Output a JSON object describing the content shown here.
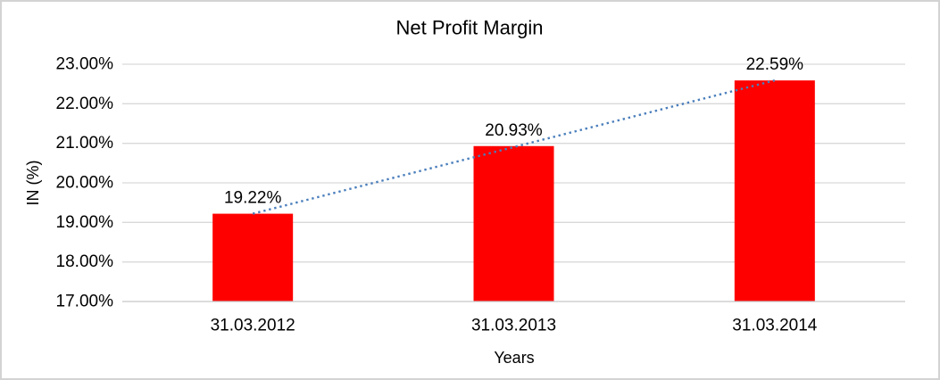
{
  "chart_data": {
    "type": "bar",
    "title": "Net Profit Margin",
    "xlabel": "Years",
    "ylabel": "IN (%)",
    "categories": [
      "31.03.2012",
      "31.03.2013",
      "31.03.2014"
    ],
    "values": [
      19.22,
      20.93,
      22.59
    ],
    "data_labels": [
      "19.22%",
      "20.93%",
      "22.59%"
    ],
    "ylim": [
      17,
      23
    ],
    "yticks": [
      {
        "value": 23,
        "label": "23.00%"
      },
      {
        "value": 22,
        "label": "22.00%"
      },
      {
        "value": 21,
        "label": "21.00%"
      },
      {
        "value": 20,
        "label": "20.00%"
      },
      {
        "value": 19,
        "label": "19.00%"
      },
      {
        "value": 18,
        "label": "18.00%"
      },
      {
        "value": 17,
        "label": "17.00%"
      }
    ],
    "grid": true,
    "legend": "none",
    "trendline": {
      "type": "linear",
      "style": "dotted"
    },
    "colors": {
      "bar": "#ff0000",
      "gridline": "#d9d9d9",
      "axis_line": "#c6c6c6",
      "trendline": "#4a7ebb",
      "text": "#000000",
      "frame_border": "#d3d3d3",
      "background": "#ffffff"
    }
  }
}
